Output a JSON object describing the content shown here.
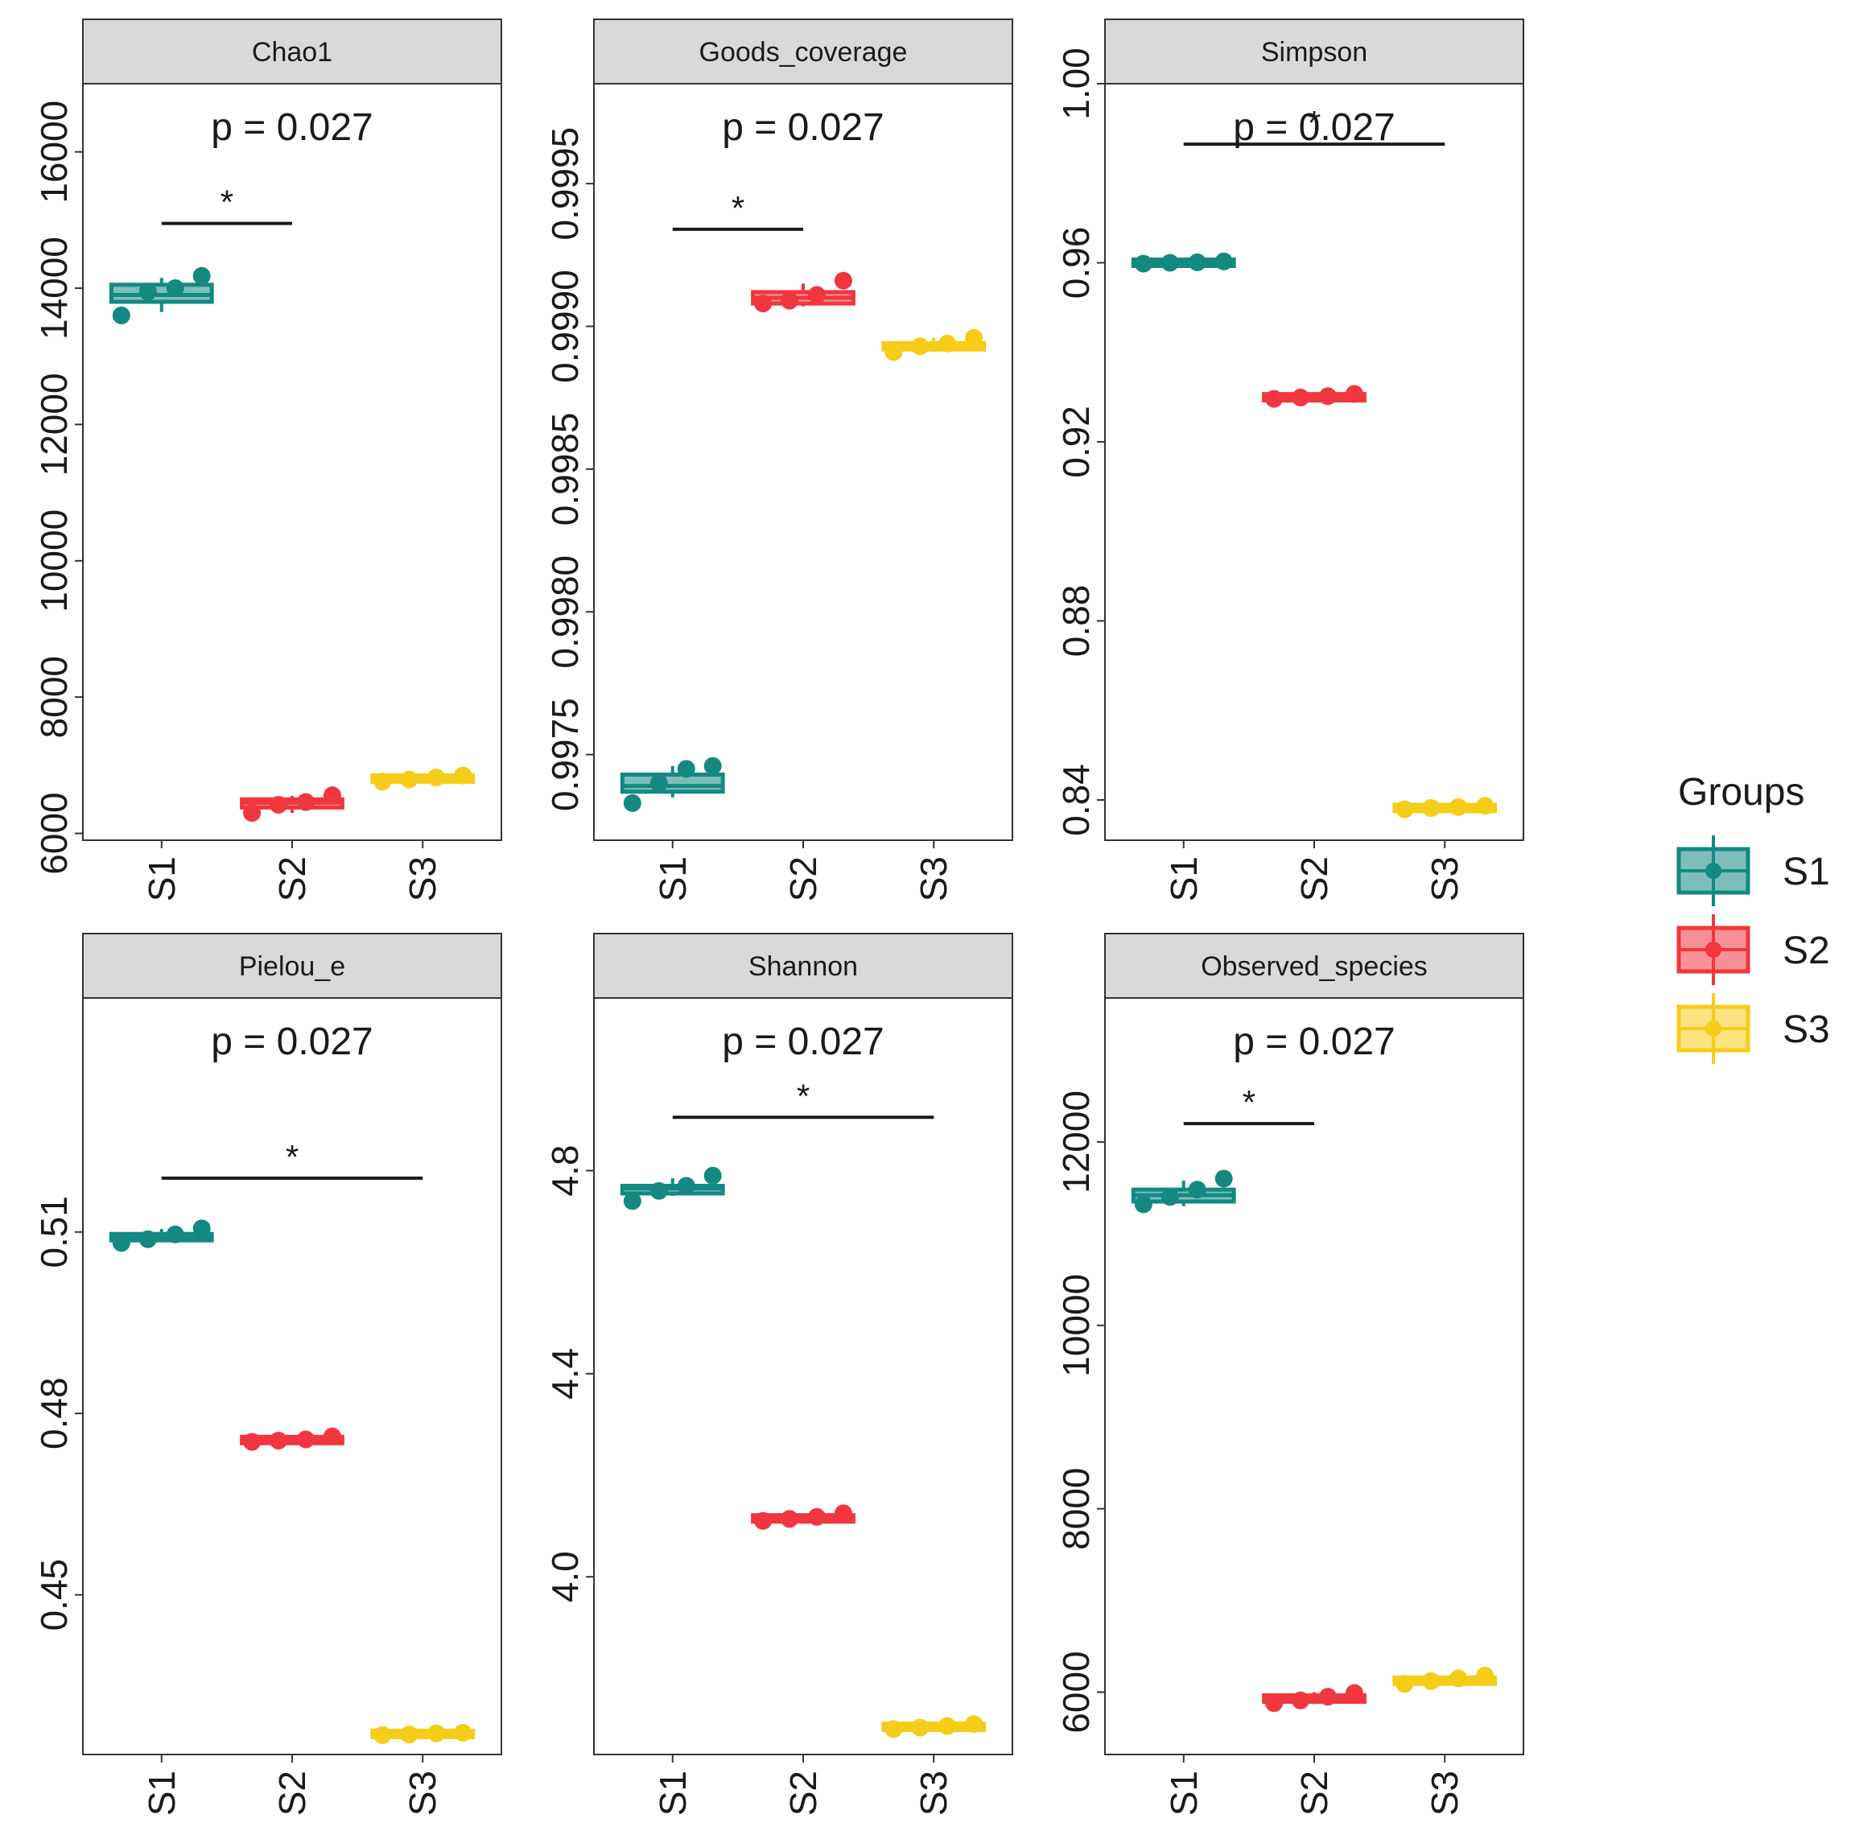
{
  "legend": {
    "title": "Groups",
    "items": [
      {
        "label": "S1",
        "color": "#138981"
      },
      {
        "label": "S2",
        "color": "#F0363E"
      },
      {
        "label": "S3",
        "color": "#F5CC18"
      }
    ]
  },
  "chart_data": [
    {
      "type": "boxplot",
      "title": "Chao1",
      "categories": [
        "S1",
        "S2",
        "S3"
      ],
      "ylim": [
        5900,
        17000
      ],
      "yticks": [
        6000,
        8000,
        10000,
        12000,
        14000,
        16000
      ],
      "ytick_labels": [
        "6000",
        "8000",
        "10000",
        "12000",
        "14000",
        "16000"
      ],
      "boxes": [
        {
          "group": "S1",
          "min": 13650,
          "q1": 13800,
          "median": 13900,
          "q3": 14050,
          "max": 14150
        },
        {
          "group": "S2",
          "min": 6300,
          "q1": 6380,
          "median": 6450,
          "q3": 6500,
          "max": 6550
        },
        {
          "group": "S3",
          "min": 6750,
          "q1": 6780,
          "median": 6800,
          "q3": 6830,
          "max": 6850
        }
      ],
      "points": [
        {
          "group": "S1",
          "values": [
            13600,
            13950,
            14000,
            14180
          ]
        },
        {
          "group": "S2",
          "values": [
            6300,
            6420,
            6460,
            6560
          ]
        },
        {
          "group": "S3",
          "values": [
            6760,
            6790,
            6820,
            6850
          ]
        }
      ],
      "pvalue_label": "p = 0.027",
      "significance": {
        "from": "S1",
        "to": "S2",
        "label": "*",
        "y": 14950
      }
    },
    {
      "type": "boxplot",
      "title": "Goods_coverage",
      "categories": [
        "S1",
        "S2",
        "S3"
      ],
      "ylim": [
        0.9972,
        0.99985
      ],
      "yticks": [
        0.9975,
        0.998,
        0.9985,
        0.999,
        0.9995
      ],
      "ytick_labels": [
        "0.9975",
        "0.9980",
        "0.9985",
        "0.9990",
        "0.9995"
      ],
      "boxes": [
        {
          "group": "S1",
          "min": 0.99735,
          "q1": 0.99737,
          "median": 0.99739,
          "q3": 0.99743,
          "max": 0.99746
        },
        {
          "group": "S2",
          "min": 0.99907,
          "q1": 0.99908,
          "median": 0.9991,
          "q3": 0.99912,
          "max": 0.99915
        },
        {
          "group": "S3",
          "min": 0.99891,
          "q1": 0.99892,
          "median": 0.99893,
          "q3": 0.99894,
          "max": 0.99896
        }
      ],
      "points": [
        {
          "group": "S1",
          "values": [
            0.99733,
            0.9974,
            0.99745,
            0.99746
          ]
        },
        {
          "group": "S2",
          "values": [
            0.99908,
            0.99909,
            0.99911,
            0.99916
          ]
        },
        {
          "group": "S3",
          "values": [
            0.99891,
            0.99893,
            0.99894,
            0.99896
          ]
        }
      ],
      "pvalue_label": "p = 0.027",
      "significance": {
        "from": "S1",
        "to": "S2",
        "label": "*",
        "y": 0.99934
      }
    },
    {
      "type": "boxplot",
      "title": "Simpson",
      "categories": [
        "S1",
        "S2",
        "S3"
      ],
      "ylim": [
        0.831,
        1.0
      ],
      "yticks": [
        0.84,
        0.88,
        0.92,
        0.96,
        1.0
      ],
      "ytick_labels": [
        "0.84",
        "0.88",
        "0.92",
        "0.96",
        "1.00"
      ],
      "boxes": [
        {
          "group": "S1",
          "min": 0.9595,
          "q1": 0.9598,
          "median": 0.96,
          "q3": 0.9602,
          "max": 0.9605
        },
        {
          "group": "S2",
          "min": 0.9295,
          "q1": 0.9297,
          "median": 0.93,
          "q3": 0.9302,
          "max": 0.9306
        },
        {
          "group": "S3",
          "min": 0.8378,
          "q1": 0.838,
          "median": 0.8382,
          "q3": 0.8384,
          "max": 0.8388
        }
      ],
      "points": [
        {
          "group": "S1",
          "values": [
            0.9598,
            0.96,
            0.9601,
            0.9603
          ]
        },
        {
          "group": "S2",
          "values": [
            0.9296,
            0.9299,
            0.9302,
            0.9307
          ]
        },
        {
          "group": "S3",
          "values": [
            0.8379,
            0.8382,
            0.8384,
            0.8387
          ]
        }
      ],
      "pvalue_label": "p = 0.027",
      "significance": {
        "from": "S1",
        "to": "S3",
        "label": "*",
        "y": 0.9865
      }
    },
    {
      "type": "boxplot",
      "title": "Pielou_e",
      "categories": [
        "S1",
        "S2",
        "S3"
      ],
      "ylim": [
        0.4236,
        0.5487
      ],
      "yticks": [
        0.45,
        0.48,
        0.51
      ],
      "ytick_labels": [
        "0.45",
        "0.48",
        "0.51"
      ],
      "boxes": [
        {
          "group": "S1",
          "min": 0.5085,
          "q1": 0.5088,
          "median": 0.509,
          "q3": 0.5095,
          "max": 0.5105
        },
        {
          "group": "S2",
          "min": 0.4752,
          "q1": 0.4754,
          "median": 0.4756,
          "q3": 0.4758,
          "max": 0.4762
        },
        {
          "group": "S3",
          "min": 0.4268,
          "q1": 0.4269,
          "median": 0.427,
          "q3": 0.4271,
          "max": 0.4273
        }
      ],
      "points": [
        {
          "group": "S1",
          "values": [
            0.5082,
            0.5088,
            0.5096,
            0.5106
          ]
        },
        {
          "group": "S2",
          "values": [
            0.4753,
            0.4755,
            0.4757,
            0.4762
          ]
        },
        {
          "group": "S3",
          "values": [
            0.4268,
            0.4269,
            0.4271,
            0.4272
          ]
        }
      ],
      "pvalue_label": "p = 0.027",
      "significance": {
        "from": "S1",
        "to": "S3",
        "label": "*",
        "y": 0.5189
      }
    },
    {
      "type": "boxplot",
      "title": "Shannon",
      "categories": [
        "S1",
        "S2",
        "S3"
      ],
      "ylim": [
        3.65,
        5.14
      ],
      "yticks": [
        4.0,
        4.4,
        4.8
      ],
      "ytick_labels": [
        "4.0",
        "4.4",
        "4.8"
      ],
      "boxes": [
        {
          "group": "S1",
          "min": 4.75,
          "q1": 4.755,
          "median": 4.765,
          "q3": 4.77,
          "max": 4.785
        },
        {
          "group": "S2",
          "min": 4.11,
          "q1": 4.112,
          "median": 4.115,
          "q3": 4.118,
          "max": 4.125
        },
        {
          "group": "S3",
          "min": 3.7,
          "q1": 3.702,
          "median": 3.705,
          "q3": 3.707,
          "max": 3.71
        }
      ],
      "points": [
        {
          "group": "S1",
          "values": [
            4.74,
            4.76,
            4.77,
            4.79
          ]
        },
        {
          "group": "S2",
          "values": [
            4.11,
            4.114,
            4.118,
            4.125
          ]
        },
        {
          "group": "S3",
          "values": [
            3.7,
            3.703,
            3.706,
            3.71
          ]
        }
      ],
      "pvalue_label": "p = 0.027",
      "significance": {
        "from": "S1",
        "to": "S3",
        "label": "*",
        "y": 4.905
      }
    },
    {
      "type": "boxplot",
      "title": "Observed_species",
      "categories": [
        "S1",
        "S2",
        "S3"
      ],
      "ylim": [
        5320,
        13570
      ],
      "yticks": [
        6000,
        8000,
        10000,
        12000
      ],
      "ytick_labels": [
        "6000",
        "8000",
        "10000",
        "12000"
      ],
      "boxes": [
        {
          "group": "S1",
          "min": 11300,
          "q1": 11350,
          "median": 11420,
          "q3": 11480,
          "max": 11580
        },
        {
          "group": "S2",
          "min": 5870,
          "q1": 5900,
          "median": 5930,
          "q3": 5960,
          "max": 6000
        },
        {
          "group": "S3",
          "min": 6080,
          "q1": 6100,
          "median": 6130,
          "q3": 6150,
          "max": 6180
        }
      ],
      "points": [
        {
          "group": "S1",
          "values": [
            11320,
            11400,
            11480,
            11600
          ]
        },
        {
          "group": "S2",
          "values": [
            5880,
            5910,
            5950,
            5990
          ]
        },
        {
          "group": "S3",
          "values": [
            6090,
            6120,
            6150,
            6180
          ]
        }
      ],
      "pvalue_label": "p = 0.027",
      "significance": {
        "from": "S1",
        "to": "S2",
        "label": "*",
        "y": 12200
      }
    }
  ]
}
